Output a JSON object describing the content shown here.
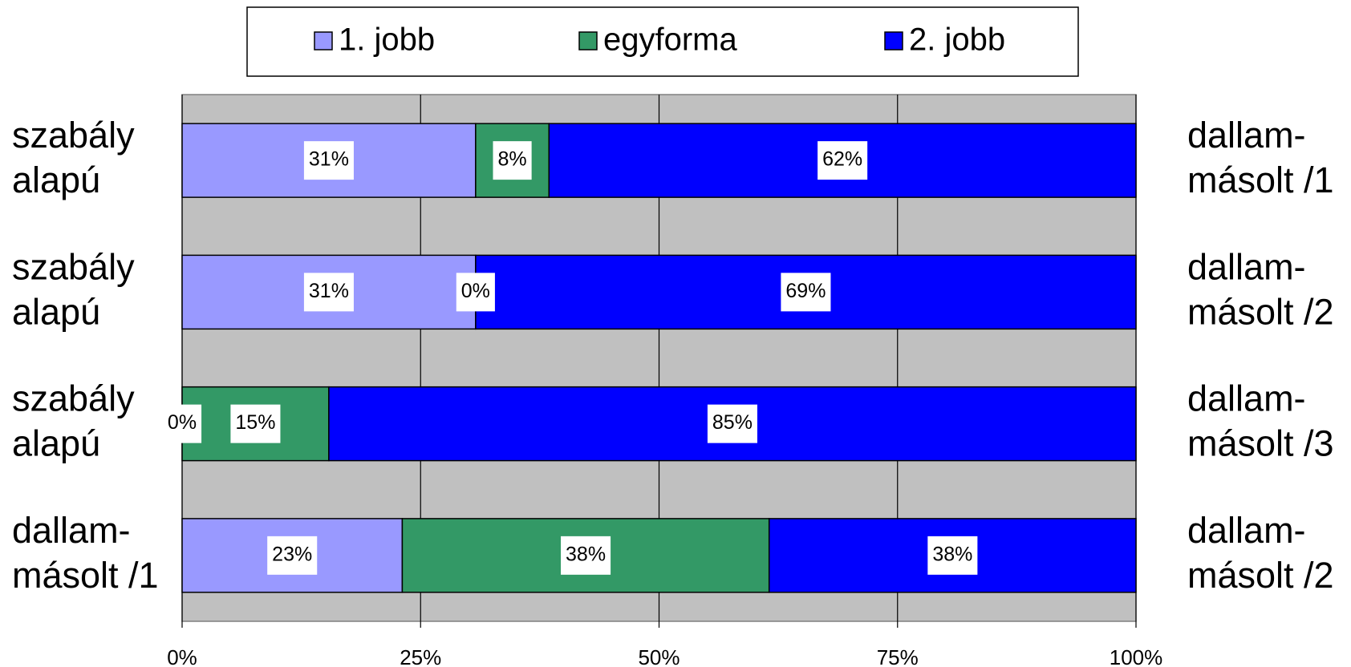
{
  "chart_data": {
    "type": "stacked-bar-horizontal",
    "categories": [
      [
        "szabály",
        "alapú"
      ],
      [
        "szabály",
        "alapú"
      ],
      [
        "szabály",
        "alapú"
      ],
      [
        "dallam-",
        "másolt /1"
      ]
    ],
    "right_labels": [
      [
        "dallam-",
        "másolt /1"
      ],
      [
        "dallam-",
        "másolt /2"
      ],
      [
        "dallam-",
        "másolt /3"
      ],
      [
        "dallam-",
        "másolt /2"
      ]
    ],
    "series": [
      {
        "name": "1. jobb",
        "color": "#9999ff",
        "values": [
          30.77,
          30.77,
          0,
          23.08
        ],
        "value_labels": [
          "31%",
          "31%",
          "0%",
          "23%"
        ]
      },
      {
        "name": "egyforma",
        "color": "#339966",
        "values": [
          7.69,
          0,
          15.38,
          38.46
        ],
        "value_labels": [
          "8%",
          "0%",
          "15%",
          "38%"
        ]
      },
      {
        "name": "2. jobb",
        "color": "#0000ff",
        "values": [
          61.54,
          69.23,
          84.62,
          38.46
        ],
        "value_labels": [
          "62%",
          "69%",
          "85%",
          "38%"
        ]
      }
    ],
    "xlim": [
      0,
      100
    ],
    "xticks": [
      {
        "value": 0,
        "label": "0%"
      },
      {
        "value": 25,
        "label": "25%"
      },
      {
        "value": 50,
        "label": "50%"
      },
      {
        "value": 75,
        "label": "75%"
      },
      {
        "value": 100,
        "label": "100%"
      }
    ],
    "grid": true,
    "legend": "top"
  }
}
